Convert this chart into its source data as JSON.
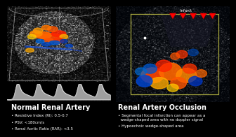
{
  "bg_color": "#000000",
  "left_panel": {
    "title": "Normal Renal Artery",
    "bullets": [
      "Resistive Index (RI): 0.5-0.7",
      "PSV: <180cm/s",
      "Renal Aortic Ratio (RAR): <3.5"
    ]
  },
  "right_panel": {
    "title": "Renal Artery Occlusion",
    "bullets": [
      "Segmental focal infarction can appear as a\n  wedge-shaped area with no doppler signal",
      "Hypoechoic wedge-shaped area"
    ]
  },
  "title_fontsize": 7.0,
  "bullet_fontsize": 4.0,
  "infarct_label": "Infarct"
}
